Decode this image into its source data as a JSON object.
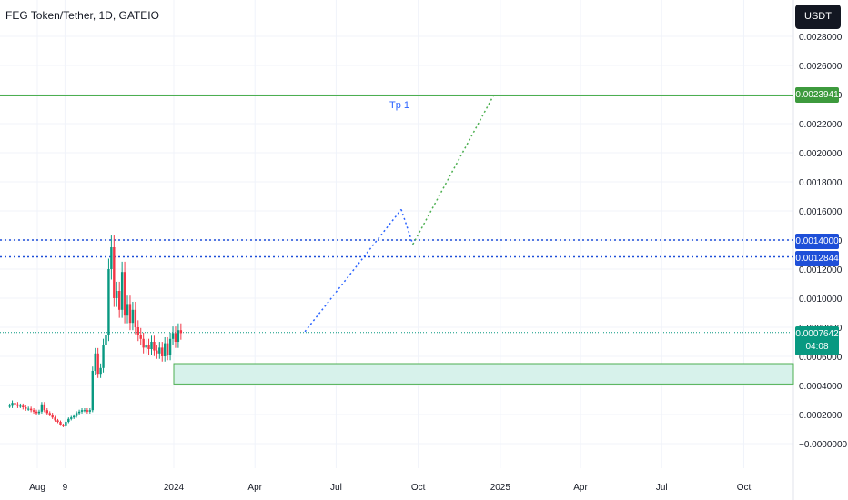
{
  "header": {
    "title": "FEG Token/Tether, 1D, GATEIO",
    "currency_button": "USDT"
  },
  "badges": {
    "target": "0.0023941",
    "resistance_1": "0.0014000",
    "resistance_2": "0.0012844",
    "last_price": "0.0007642",
    "countdown": "04:08"
  },
  "annotations": {
    "tp_label": "Tp 1"
  },
  "colors": {
    "up": "#089981",
    "down": "#f23645",
    "target_line": "#4caf50",
    "resistance_line": "#1e4fd8",
    "zone_fill": "#d7f2eb",
    "zone_border": "#4caf50",
    "projection_blue": "#2962ff",
    "projection_green": "#4caf50"
  },
  "chart_data": {
    "type": "candlestick",
    "y_axis_ticks": [
      "0.0028000",
      "0.0026000",
      "0.0024000",
      "0.0022000",
      "0.0020000",
      "0.0018000",
      "0.0016000",
      "0.0014000",
      "0.0012000",
      "0.0010000",
      "0.0008000",
      "0.0006000",
      "0.0004000",
      "0.0002000",
      "−0.0000000"
    ],
    "y_axis_tick_values": [
      0.0028,
      0.0026,
      0.0024,
      0.0022,
      0.002,
      0.0018,
      0.0016,
      0.0014,
      0.0012,
      0.001,
      0.0008,
      0.0006,
      0.0004,
      0.0002,
      0.0
    ],
    "ylim": [
      -0.00025,
      0.003
    ],
    "x_axis_ticks": [
      "Aug",
      "9",
      "2024",
      "Apr",
      "Jul",
      "Oct",
      "2025",
      "Apr",
      "Jul",
      "Oct"
    ],
    "x_axis_dates": [
      "2023-08-01",
      "2023-09-01",
      "2024-01-01",
      "2024-04-01",
      "2024-07-01",
      "2024-10-01",
      "2025-01-01",
      "2025-04-01",
      "2025-07-01",
      "2025-10-01"
    ],
    "horizontal_lines": [
      {
        "name": "target",
        "value": 0.0023941
      },
      {
        "name": "resistance_1",
        "value": 0.0014
      },
      {
        "name": "resistance_2",
        "value": 0.0012844
      },
      {
        "name": "last_price",
        "value": 0.0007642
      }
    ],
    "support_zone": {
      "from": 0.00041,
      "to": 0.00055
    },
    "close_series": {
      "start": "2023-07-01",
      "step_days": 3,
      "values": [
        0.00026,
        0.00028,
        0.00027,
        0.00026,
        0.00026,
        0.00025,
        0.00024,
        0.00024,
        0.00023,
        0.00022,
        0.00021,
        0.00022,
        0.00027,
        0.00023,
        0.00021,
        0.0002,
        0.00018,
        0.00016,
        0.00015,
        0.00013,
        0.00012,
        0.00015,
        0.00017,
        0.00018,
        0.00019,
        0.00021,
        0.00022,
        0.00023,
        0.00023,
        0.00022,
        0.00023,
        0.0005,
        0.00062,
        0.00048,
        0.00052,
        0.00068,
        0.00075,
        0.0012,
        0.00135,
        0.001,
        0.00105,
        0.00092,
        0.00118,
        0.00088,
        0.00096,
        0.00083,
        0.00092,
        0.0008,
        0.00075,
        0.00072,
        0.00066,
        0.00068,
        0.00065,
        0.0007,
        0.00064,
        0.00062,
        0.00066,
        0.0006,
        0.00069,
        0.00061,
        0.00072,
        0.00076,
        0.0007,
        0.00078,
        0.00076
      ]
    },
    "projection": [
      {
        "x": "2024-05-27",
        "y": 0.00077
      },
      {
        "x": "2024-09-12",
        "y": 0.00161
      },
      {
        "x": "2024-09-25",
        "y": 0.00137
      },
      {
        "x": "2024-12-25",
        "y": 0.0024
      }
    ]
  }
}
